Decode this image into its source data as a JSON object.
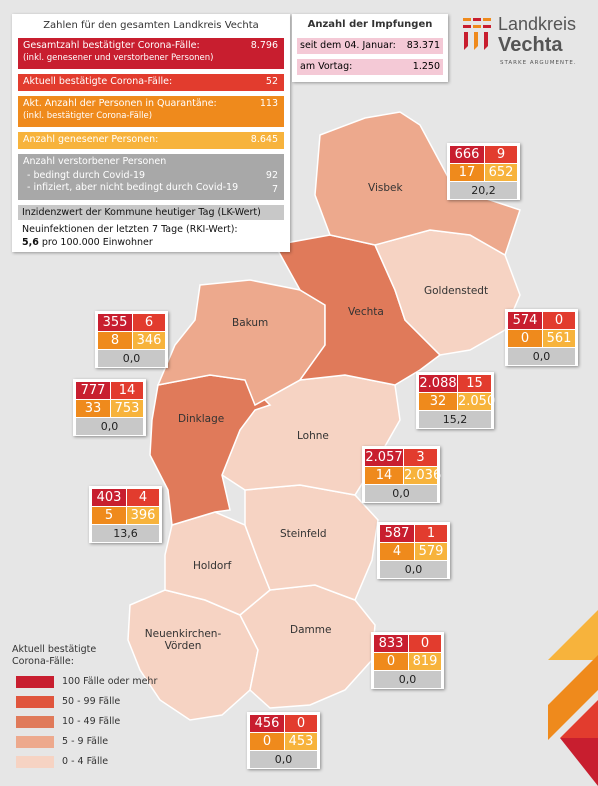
{
  "stats_panel": {
    "title": "Zahlen für den gesamten Landkreis Vechta",
    "rows": [
      {
        "label": "Gesamtzahl bestätigter Corona-Fälle:",
        "sub": "(inkl. genesener und verstorbener Personen)",
        "value": "8.796"
      },
      {
        "label": "Aktuell bestätigte Corona-Fälle:",
        "value": "52"
      },
      {
        "label": "Akt. Anzahl der Personen in Quarantäne:",
        "sub": "(inkl. bestätigter Corona-Fälle)",
        "value": "113"
      },
      {
        "label": "Anzahl genesener Personen:",
        "value": "8.645"
      },
      {
        "label": "Anzahl verstorbener Personen",
        "sub1": "- bedingt durch Covid-19",
        "value1": "92",
        "sub2": "- infiziert, aber nicht bedingt durch Covid-19",
        "value2": "7"
      }
    ],
    "incidence_label": "Inzidenzwert der Kommune heutiger Tag (LK-Wert)",
    "rki_label": "Neuinfektionen der letzten 7 Tage (RKI-Wert):",
    "rki_value": "5,6",
    "rki_suffix": "pro 100.000 Einwohner"
  },
  "vaccine_panel": {
    "title": "Anzahl der Impfungen",
    "since_label": "seit dem 04. Januar:",
    "since_value": "83.371",
    "prev_label": "am Vortag:",
    "prev_value": "1.250"
  },
  "logo": {
    "line1": "Landkreis",
    "line2": "Vechta",
    "tagline": "STARKE ARGUMENTE."
  },
  "towns": [
    {
      "name": "Visbek",
      "total": "666",
      "current": "9",
      "quarantine": "17",
      "recovered": "652",
      "incidence": "20,2"
    },
    {
      "name": "Goldenstedt",
      "total": "574",
      "current": "0",
      "quarantine": "0",
      "recovered": "561",
      "incidence": "0,0"
    },
    {
      "name": "Vechta",
      "total": "2.088",
      "current": "15",
      "quarantine": "32",
      "recovered": "2.050",
      "incidence": "15,2"
    },
    {
      "name": "Bakum",
      "total": "355",
      "current": "6",
      "quarantine": "8",
      "recovered": "346",
      "incidence": "0,0"
    },
    {
      "name": "Dinklage",
      "total": "777",
      "current": "14",
      "quarantine": "33",
      "recovered": "753",
      "incidence": "0,0"
    },
    {
      "name": "Lohne",
      "total": "2.057",
      "current": "3",
      "quarantine": "14",
      "recovered": "2.036",
      "incidence": "0,0"
    },
    {
      "name": "Holdorf",
      "total": "403",
      "current": "4",
      "quarantine": "5",
      "recovered": "396",
      "incidence": "13,6"
    },
    {
      "name": "Steinfeld",
      "total": "587",
      "current": "1",
      "quarantine": "4",
      "recovered": "579",
      "incidence": "0,0"
    },
    {
      "name": "Damme",
      "total": "833",
      "current": "0",
      "quarantine": "0",
      "recovered": "819",
      "incidence": "0,0"
    },
    {
      "name": "Neuenkirchen-Vörden",
      "total": "456",
      "current": "0",
      "quarantine": "0",
      "recovered": "453",
      "incidence": "0,0"
    }
  ],
  "legend": {
    "title1": "Aktuell bestätigte",
    "title2": "Corona-Fälle:",
    "items": [
      {
        "label": "100 Fälle oder mehr",
        "color": "#c81e2f"
      },
      {
        "label": "50 - 99 Fälle",
        "color": "#e0553d"
      },
      {
        "label": "10 - 49 Fälle",
        "color": "#e07a5a"
      },
      {
        "label": "5 - 9 Fälle",
        "color": "#eda98d"
      },
      {
        "label": "0 - 4 Fälle",
        "color": "#f6d3c3"
      }
    ]
  },
  "colors": {
    "red": "#c81e2f",
    "orange": "#ef8a1c",
    "yellow": "#f7b33c",
    "grey": "#a8a8a8"
  }
}
